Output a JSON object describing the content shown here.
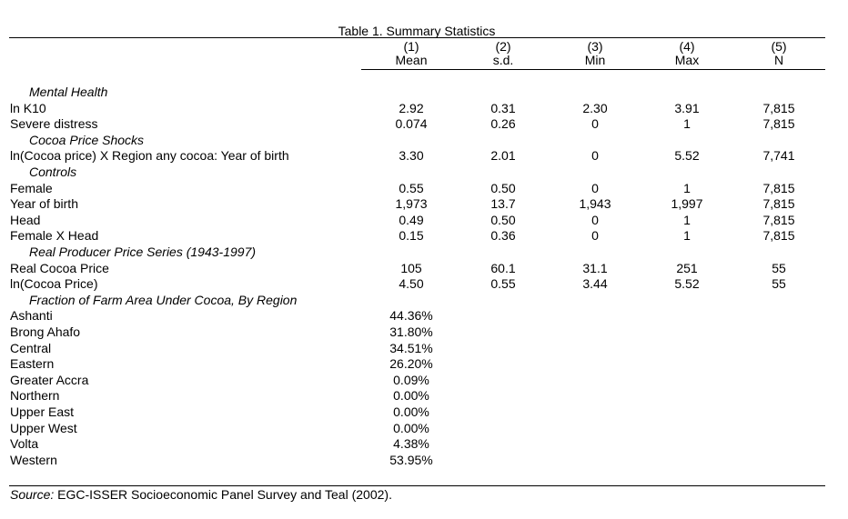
{
  "table": {
    "title": "Table 1. Summary Statistics",
    "columns": [
      {
        "num": "(1)",
        "name": "Mean"
      },
      {
        "num": "(2)",
        "name": "s.d."
      },
      {
        "num": "(3)",
        "name": "Min"
      },
      {
        "num": "(4)",
        "name": "Max"
      },
      {
        "num": "(5)",
        "name": "N"
      }
    ],
    "rows": [
      {
        "type": "section",
        "label": "Mental Health",
        "values": [
          "",
          "",
          "",
          "",
          ""
        ]
      },
      {
        "type": "data",
        "label": "ln K10",
        "values": [
          "2.92",
          "0.31",
          "2.30",
          "3.91",
          "7,815"
        ]
      },
      {
        "type": "data",
        "label": "Severe distress",
        "values": [
          "0.074",
          "0.26",
          "0",
          "1",
          "7,815"
        ]
      },
      {
        "type": "section",
        "label": "Cocoa Price Shocks",
        "values": [
          "",
          "",
          "",
          "",
          ""
        ]
      },
      {
        "type": "data",
        "label": "ln(Cocoa price) X Region any cocoa: Year of birth",
        "values": [
          "3.30",
          "2.01",
          "0",
          "5.52",
          "7,741"
        ]
      },
      {
        "type": "section",
        "label": "Controls",
        "values": [
          "",
          "",
          "",
          "",
          ""
        ]
      },
      {
        "type": "data",
        "label": "Female",
        "values": [
          "0.55",
          "0.50",
          "0",
          "1",
          "7,815"
        ]
      },
      {
        "type": "data",
        "label": "Year of birth",
        "values": [
          "1,973",
          "13.7",
          "1,943",
          "1,997",
          "7,815"
        ]
      },
      {
        "type": "data",
        "label": "Head",
        "values": [
          "0.49",
          "0.50",
          "0",
          "1",
          "7,815"
        ]
      },
      {
        "type": "data",
        "label": "Female X Head",
        "values": [
          "0.15",
          "0.36",
          "0",
          "1",
          "7,815"
        ]
      },
      {
        "type": "section",
        "label": "Real Producer Price Series (1943-1997)",
        "values": [
          "",
          "",
          "",
          "",
          ""
        ]
      },
      {
        "type": "data",
        "label": "Real Cocoa Price",
        "values": [
          "105",
          "60.1",
          "31.1",
          "251",
          "55"
        ]
      },
      {
        "type": "data",
        "label": "ln(Cocoa Price)",
        "values": [
          "4.50",
          "0.55",
          "3.44",
          "5.52",
          "55"
        ]
      },
      {
        "type": "section",
        "label": "Fraction of Farm Area Under Cocoa, By Region",
        "values": [
          "",
          "",
          "",
          "",
          ""
        ]
      },
      {
        "type": "data",
        "label": "Ashanti",
        "values": [
          "44.36%",
          "",
          "",
          "",
          ""
        ]
      },
      {
        "type": "data",
        "label": "Brong Ahafo",
        "values": [
          "31.80%",
          "",
          "",
          "",
          ""
        ]
      },
      {
        "type": "data",
        "label": "Central",
        "values": [
          "34.51%",
          "",
          "",
          "",
          ""
        ]
      },
      {
        "type": "data",
        "label": "Eastern",
        "values": [
          "26.20%",
          "",
          "",
          "",
          ""
        ]
      },
      {
        "type": "data",
        "label": "Greater Accra",
        "values": [
          "0.09%",
          "",
          "",
          "",
          ""
        ]
      },
      {
        "type": "data",
        "label": "Northern",
        "values": [
          "0.00%",
          "",
          "",
          "",
          ""
        ]
      },
      {
        "type": "data",
        "label": "Upper East",
        "values": [
          "0.00%",
          "",
          "",
          "",
          ""
        ]
      },
      {
        "type": "data",
        "label": "Upper West",
        "values": [
          "0.00%",
          "",
          "",
          "",
          ""
        ]
      },
      {
        "type": "data",
        "label": "Volta",
        "values": [
          "4.38%",
          "",
          "",
          "",
          ""
        ]
      },
      {
        "type": "data",
        "label": "Western",
        "values": [
          "53.95%",
          "",
          "",
          "",
          ""
        ]
      }
    ]
  },
  "source": {
    "label": "Source:",
    "text": " EGC-ISSER Socioeconomic Panel Survey and Teal (2002)."
  }
}
